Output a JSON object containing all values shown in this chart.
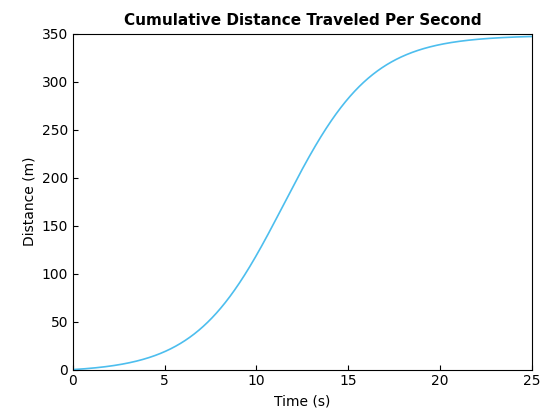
{
  "title": "Cumulative Distance Traveled Per Second",
  "xlabel": "Time (s)",
  "ylabel": "Distance (m)",
  "xlim": [
    0,
    25
  ],
  "ylim": [
    0,
    350
  ],
  "xticks": [
    0,
    5,
    10,
    15,
    20,
    25
  ],
  "yticks": [
    0,
    50,
    100,
    150,
    200,
    250,
    300,
    350
  ],
  "line_color": "#4DBEEE",
  "line_width": 1.2,
  "background_color": "#FFFFFF",
  "sigmoid_L": 355.0,
  "sigmoid_k": 0.42,
  "sigmoid_x0": 11.5,
  "t_start": 0.0,
  "t_end": 25.0,
  "title_fontsize": 11,
  "axis_fontsize": 10,
  "tick_fontsize": 10
}
